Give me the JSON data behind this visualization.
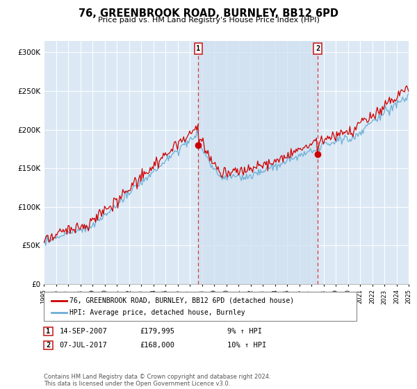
{
  "title": "76, GREENBROOK ROAD, BURNLEY, BB12 6PD",
  "subtitle": "Price paid vs. HM Land Registry's House Price Index (HPI)",
  "ylabel_ticks": [
    "£0",
    "£50K",
    "£100K",
    "£150K",
    "£200K",
    "£250K",
    "£300K"
  ],
  "ytick_values": [
    0,
    50000,
    100000,
    150000,
    200000,
    250000,
    300000
  ],
  "ylim": [
    0,
    315000
  ],
  "hpi_color": "#6baed6",
  "price_color": "#cc0000",
  "background_color": "#dce9f5",
  "shade_color": "#c5d8ee",
  "marker1_year": 2007.71,
  "marker1_price": 179995,
  "marker1_label": "1",
  "marker1_date": "14-SEP-2007",
  "marker1_pct": "9% ↑ HPI",
  "marker2_year": 2017.52,
  "marker2_price": 168000,
  "marker2_label": "2",
  "marker2_date": "07-JUL-2017",
  "marker2_pct": "10% ↑ HPI",
  "legend_label1": "76, GREENBROOK ROAD, BURNLEY, BB12 6PD (detached house)",
  "legend_label2": "HPI: Average price, detached house, Burnley",
  "footer": "Contains HM Land Registry data © Crown copyright and database right 2024.\nThis data is licensed under the Open Government Licence v3.0.",
  "xstart": 1995,
  "xend": 2025
}
